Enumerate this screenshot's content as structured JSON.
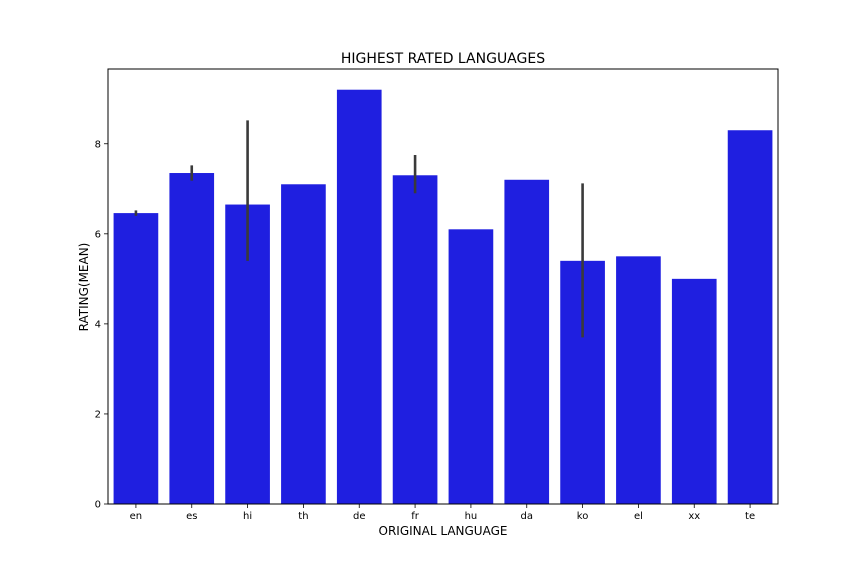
{
  "chart_data": {
    "type": "bar",
    "title": "HIGHEST RATED LANGUAGES",
    "xlabel": "ORIGINAL LANGUAGE",
    "ylabel": "RATING(MEAN)",
    "categories": [
      "en",
      "es",
      "hi",
      "th",
      "de",
      "fr",
      "hu",
      "da",
      "ko",
      "el",
      "xx",
      "te"
    ],
    "values": [
      6.46,
      7.35,
      6.65,
      7.1,
      9.2,
      7.3,
      6.1,
      7.2,
      5.4,
      5.5,
      5.0,
      8.3
    ],
    "error_bars": [
      [
        6.4,
        6.52
      ],
      [
        7.18,
        7.52
      ],
      [
        5.4,
        8.52
      ],
      null,
      null,
      [
        6.9,
        7.75
      ],
      null,
      null,
      [
        3.7,
        7.12
      ],
      null,
      null,
      null
    ],
    "ylim": [
      0,
      9.66
    ],
    "yticks": [
      0,
      2,
      4,
      6,
      8
    ],
    "bar_color": "#1f1fe0",
    "errorbar_color": "#3a3a3a",
    "grid": false,
    "legend": "none"
  }
}
